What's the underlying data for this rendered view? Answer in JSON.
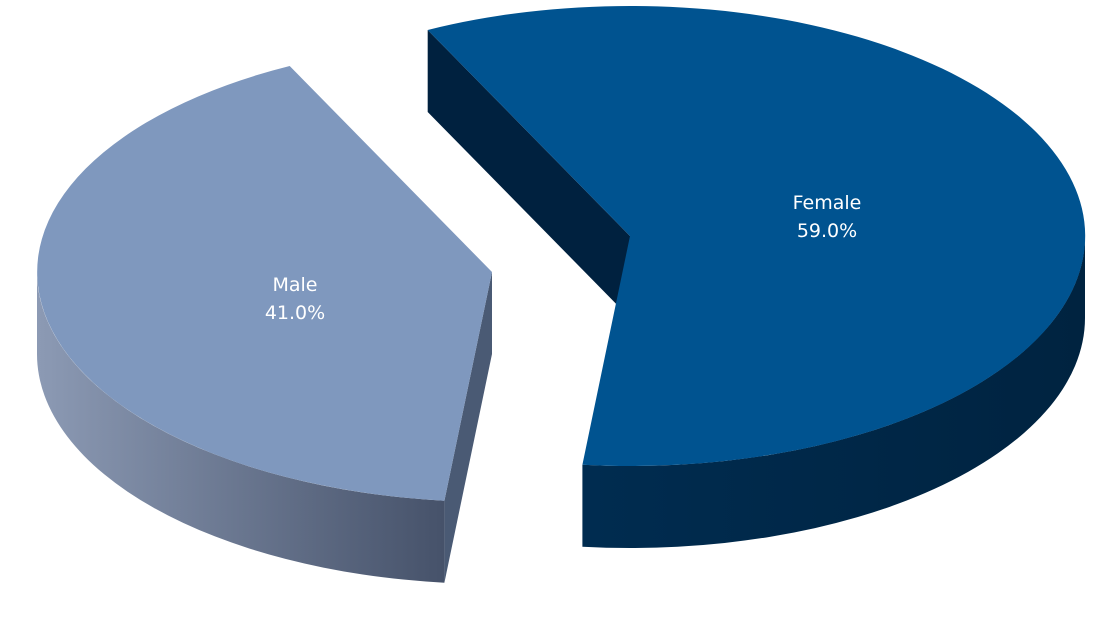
{
  "chart_data": {
    "type": "pie",
    "style": "3d-exploded",
    "title": "",
    "legend": "none",
    "slices": [
      {
        "name": "Female",
        "value": 59.0,
        "label": "Female",
        "percent_label": "59.0%",
        "top_color": "#005390",
        "side_color": "#00213F"
      },
      {
        "name": "Male",
        "value": 41.0,
        "label": "Male",
        "percent_label": "41.0%",
        "top_color": "#7F98BE",
        "side_color": "#4A5A74"
      }
    ]
  }
}
